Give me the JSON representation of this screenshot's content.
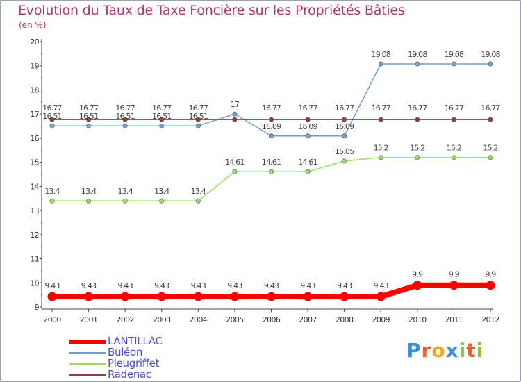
{
  "chart_data": {
    "type": "line",
    "title": "Evolution du Taux de Taxe Foncière sur les Propriétés Bâties",
    "unit_label": "(en %)",
    "categories": [
      "2000",
      "2001",
      "2002",
      "2003",
      "2004",
      "2005",
      "2006",
      "2007",
      "2008",
      "2009",
      "2010",
      "2011",
      "2012"
    ],
    "ylim": [
      9,
      20
    ],
    "yticks": [
      9,
      10,
      11,
      12,
      13,
      14,
      15,
      16,
      17,
      18,
      19,
      20
    ],
    "series": [
      {
        "name": "LANTILLAC",
        "color": "#ff0000",
        "values": [
          9.43,
          9.43,
          9.43,
          9.43,
          9.43,
          9.43,
          9.43,
          9.43,
          9.43,
          9.43,
          9.9,
          9.9,
          9.9
        ],
        "labels": [
          "9.43",
          "9.43",
          "9.43",
          "9.43",
          "9.43",
          "9.43",
          "9.43",
          "9.43",
          "9.43",
          "9.43",
          "9.9",
          "9.9",
          "9.9"
        ]
      },
      {
        "name": "Buléon",
        "color": "#6ea0cc",
        "values": [
          16.51,
          16.51,
          16.51,
          16.51,
          16.51,
          17,
          16.09,
          16.09,
          16.09,
          19.08,
          19.08,
          19.08,
          19.08
        ],
        "labels": [
          "16.51",
          "16.51",
          "16.51",
          "16.51",
          "16.51",
          "17",
          "16.09",
          "16.09",
          "16.09",
          "19.08",
          "19.08",
          "19.08",
          "19.08"
        ]
      },
      {
        "name": "Pleugriffet",
        "color": "#99dd66",
        "values": [
          13.4,
          13.4,
          13.4,
          13.4,
          13.4,
          14.61,
          14.61,
          14.61,
          15.05,
          15.2,
          15.2,
          15.2,
          15.2
        ],
        "labels": [
          "13.4",
          "13.4",
          "13.4",
          "13.4",
          "13.4",
          "14.61",
          "14.61",
          "14.61",
          "15.05",
          "15.2",
          "15.2",
          "15.2",
          "15.2"
        ]
      },
      {
        "name": "Radenac",
        "color": "#884444",
        "values": [
          16.77,
          16.77,
          16.77,
          16.77,
          16.77,
          16.77,
          16.77,
          16.77,
          16.77,
          16.77,
          16.77,
          16.77,
          16.77
        ],
        "labels": [
          "16.77",
          "16.77",
          "16.77",
          "16.77",
          "16.77",
          "",
          "16.77",
          "16.77",
          "16.77",
          "16.77",
          "16.77",
          "16.77",
          "16.77"
        ]
      }
    ],
    "grid": false,
    "legend_position": "bottom-left"
  },
  "brand": {
    "logo_text": "Proxiti",
    "letters": [
      "P",
      "r",
      "o",
      "x",
      "i",
      "t",
      "i"
    ],
    "letter_colors": [
      "#3a8fd8",
      "#e8602c",
      "#f2a81d",
      "#3a8fd8",
      "#8cc63f",
      "#e8602c",
      "#8cc63f"
    ]
  }
}
